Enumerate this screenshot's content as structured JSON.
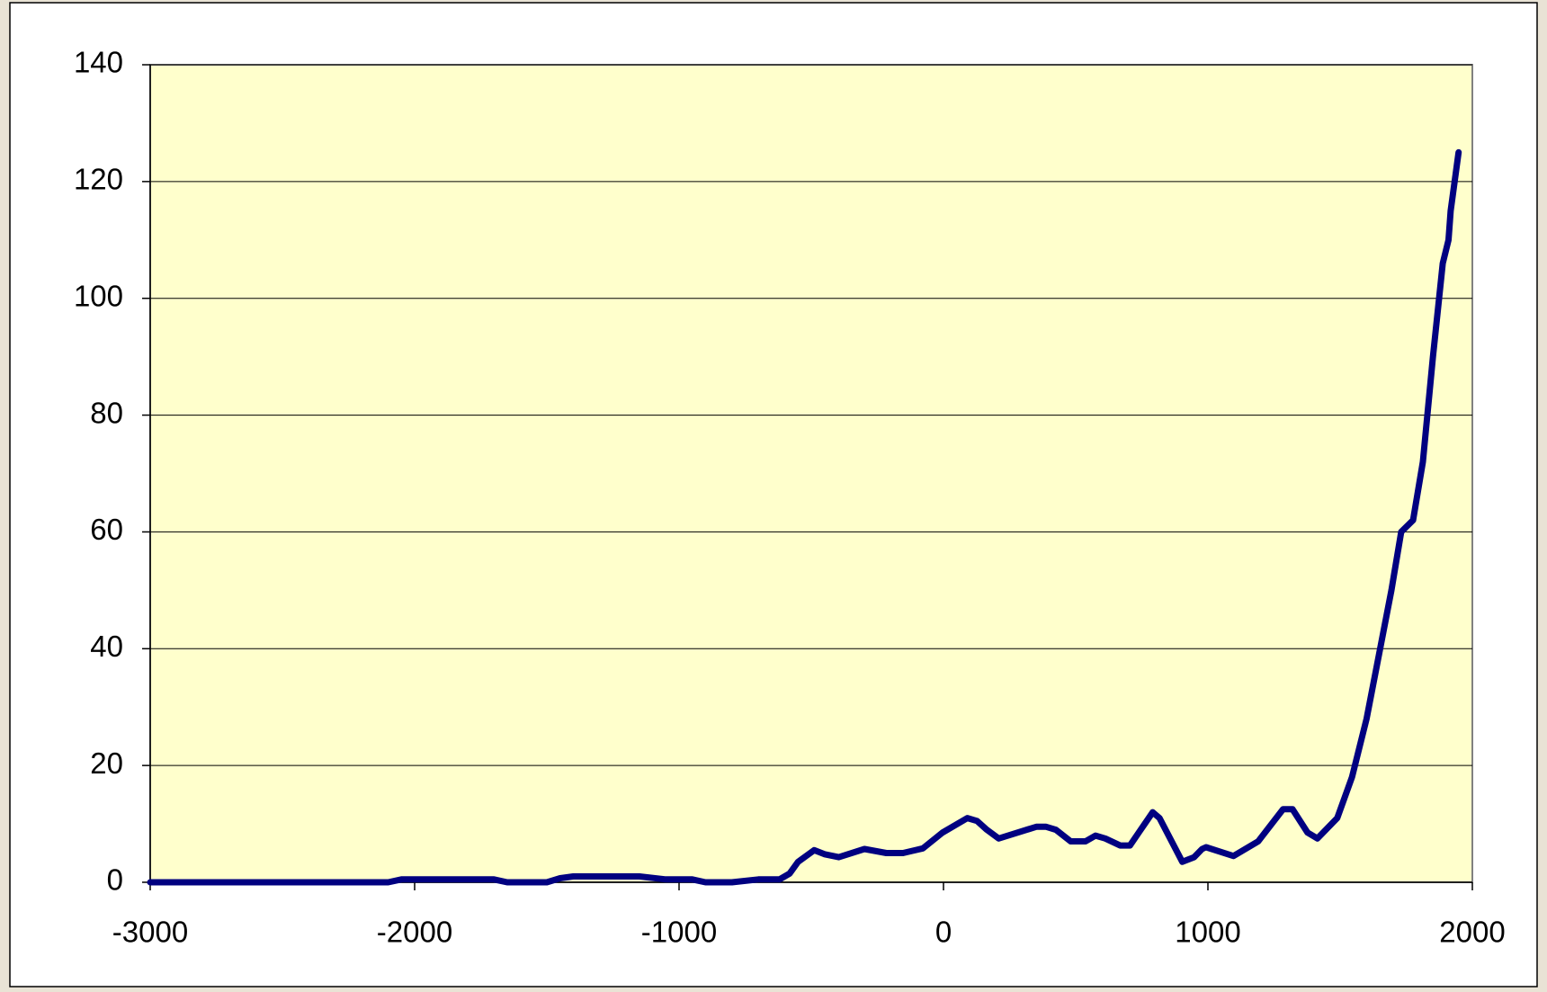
{
  "chart_data": {
    "type": "line",
    "x": [
      -3000,
      -2100,
      -2050,
      -1700,
      -1650,
      -1500,
      -1450,
      -1400,
      -1150,
      -1050,
      -950,
      -900,
      -800,
      -700,
      -620,
      -582,
      -550,
      -489,
      -450,
      -396,
      -299,
      -216,
      -153,
      -78,
      -4,
      90,
      127,
      164,
      209,
      351,
      388,
      425,
      481,
      537,
      575,
      612,
      668,
      705,
      761,
      791,
      817,
      903,
      948,
      978,
      993,
      1097,
      1190,
      1284,
      1320,
      1377,
      1414,
      1489,
      1545,
      1600,
      1694,
      1731,
      1776,
      1813,
      1851,
      1888,
      1910,
      1918,
      1948
    ],
    "values": [
      0,
      0,
      0.5,
      0.5,
      0,
      0,
      0.7,
      1,
      1,
      0.5,
      0.5,
      0,
      0,
      0.5,
      0.5,
      1.5,
      3.5,
      5.5,
      4.8,
      4.3,
      5.7,
      5,
      5,
      5.8,
      8.5,
      11,
      10.5,
      9,
      7.5,
      9.5,
      9.5,
      9,
      7,
      7,
      8,
      7.5,
      6.3,
      6.3,
      10,
      12,
      11,
      3.5,
      4.3,
      5.7,
      6,
      4.5,
      7,
      12.5,
      12.5,
      8.5,
      7.5,
      11,
      18,
      28,
      50,
      60,
      62,
      72,
      90,
      106,
      110,
      115,
      125
    ],
    "color": "#000080",
    "xlim": [
      -3000,
      2000
    ],
    "xticks": [
      -3000,
      -2000,
      -1000,
      0,
      1000,
      2000
    ],
    "ylim": [
      0,
      140
    ],
    "yticks": [
      0,
      20,
      40,
      60,
      80,
      100,
      120,
      140
    ],
    "grid": true
  }
}
